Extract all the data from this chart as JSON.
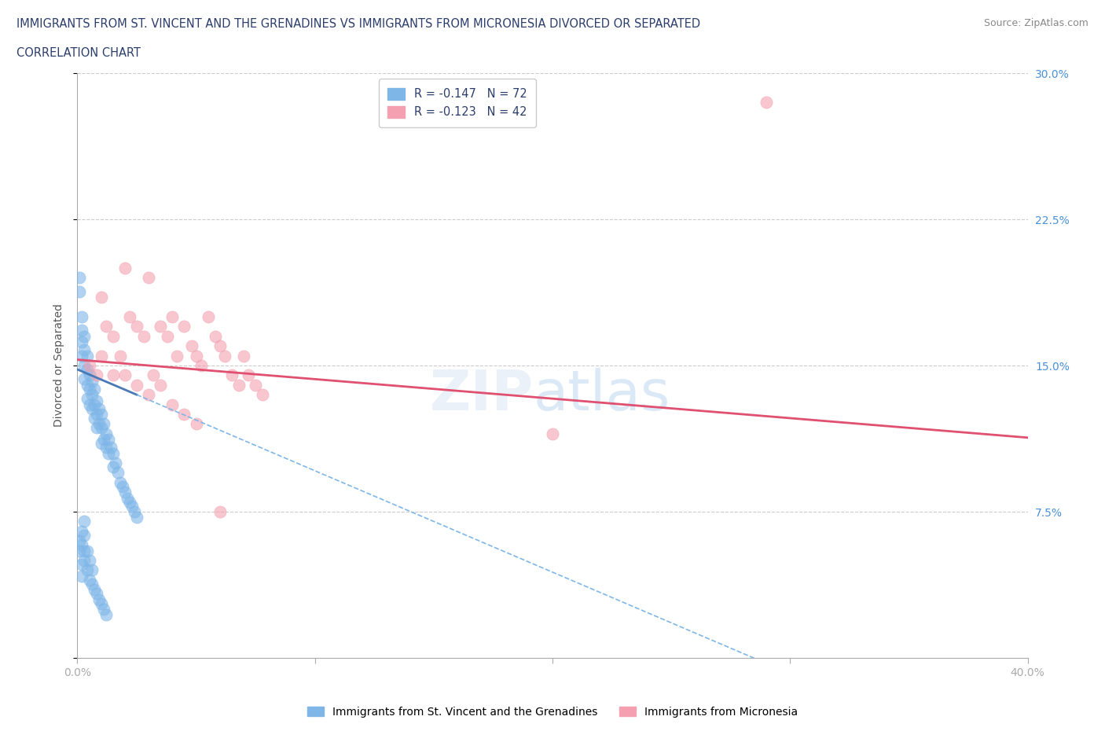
{
  "title_line1": "IMMIGRANTS FROM ST. VINCENT AND THE GRENADINES VS IMMIGRANTS FROM MICRONESIA DIVORCED OR SEPARATED",
  "title_line2": "CORRELATION CHART",
  "source_text": "Source: ZipAtlas.com",
  "ylabel": "Divorced or Separated",
  "x_min": 0.0,
  "x_max": 0.4,
  "y_min": 0.0,
  "y_max": 0.3,
  "color_blue": "#7eb6e8",
  "color_blue_line": "#4a7ab5",
  "color_pink": "#f4a0b0",
  "color_pink_line": "#e05070",
  "series1_name": "Immigrants from St. Vincent and the Grenadines",
  "series2_name": "Immigrants from Micronesia",
  "legend1": "R = -0.147   N = 72",
  "legend2": "R = -0.123   N = 42",
  "blue_intercept": 0.148,
  "blue_slope": -0.52,
  "pink_intercept": 0.153,
  "pink_slope": -0.1,
  "blue_x": [
    0.001,
    0.001,
    0.002,
    0.002,
    0.002,
    0.002,
    0.003,
    0.003,
    0.003,
    0.003,
    0.004,
    0.004,
    0.004,
    0.004,
    0.005,
    0.005,
    0.005,
    0.006,
    0.006,
    0.006,
    0.007,
    0.007,
    0.007,
    0.008,
    0.008,
    0.008,
    0.009,
    0.009,
    0.01,
    0.01,
    0.01,
    0.011,
    0.011,
    0.012,
    0.012,
    0.013,
    0.013,
    0.014,
    0.015,
    0.015,
    0.016,
    0.017,
    0.018,
    0.019,
    0.02,
    0.021,
    0.022,
    0.023,
    0.024,
    0.025,
    0.002,
    0.002,
    0.003,
    0.003,
    0.004,
    0.005,
    0.006,
    0.007,
    0.008,
    0.009,
    0.01,
    0.011,
    0.012,
    0.001,
    0.001,
    0.002,
    0.002,
    0.003,
    0.003,
    0.004,
    0.005,
    0.006
  ],
  "blue_y": [
    0.195,
    0.188,
    0.175,
    0.168,
    0.162,
    0.155,
    0.165,
    0.158,
    0.15,
    0.143,
    0.155,
    0.148,
    0.14,
    0.133,
    0.145,
    0.138,
    0.13,
    0.142,
    0.135,
    0.128,
    0.138,
    0.13,
    0.123,
    0.132,
    0.125,
    0.118,
    0.128,
    0.12,
    0.125,
    0.118,
    0.11,
    0.12,
    0.112,
    0.115,
    0.108,
    0.112,
    0.105,
    0.108,
    0.105,
    0.098,
    0.1,
    0.095,
    0.09,
    0.088,
    0.085,
    0.082,
    0.08,
    0.078,
    0.075,
    0.072,
    0.048,
    0.042,
    0.055,
    0.05,
    0.045,
    0.04,
    0.038,
    0.035,
    0.033,
    0.03,
    0.028,
    0.025,
    0.022,
    0.06,
    0.055,
    0.065,
    0.058,
    0.07,
    0.063,
    0.055,
    0.05,
    0.045
  ],
  "pink_x": [
    0.005,
    0.008,
    0.01,
    0.012,
    0.015,
    0.018,
    0.02,
    0.022,
    0.025,
    0.028,
    0.03,
    0.032,
    0.035,
    0.038,
    0.04,
    0.042,
    0.045,
    0.048,
    0.05,
    0.052,
    0.055,
    0.058,
    0.06,
    0.062,
    0.065,
    0.068,
    0.07,
    0.072,
    0.075,
    0.078,
    0.01,
    0.015,
    0.02,
    0.025,
    0.03,
    0.035,
    0.04,
    0.045,
    0.05,
    0.2,
    0.29,
    0.06
  ],
  "pink_y": [
    0.15,
    0.145,
    0.185,
    0.17,
    0.165,
    0.155,
    0.2,
    0.175,
    0.17,
    0.165,
    0.195,
    0.145,
    0.17,
    0.165,
    0.175,
    0.155,
    0.17,
    0.16,
    0.155,
    0.15,
    0.175,
    0.165,
    0.16,
    0.155,
    0.145,
    0.14,
    0.155,
    0.145,
    0.14,
    0.135,
    0.155,
    0.145,
    0.145,
    0.14,
    0.135,
    0.14,
    0.13,
    0.125,
    0.12,
    0.115,
    0.285,
    0.075
  ]
}
